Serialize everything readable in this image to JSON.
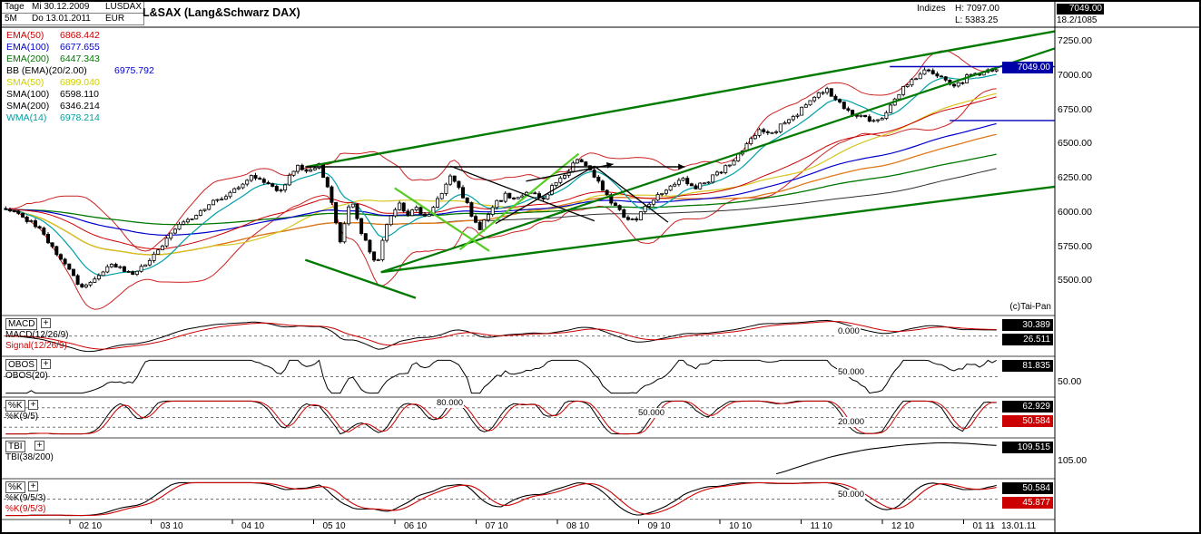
{
  "header": {
    "period": "Tage",
    "date_from": "Mi 30.12.2009",
    "symbol": "LUSDAX",
    "period2": "5M",
    "date_to": "Do 13.01.2011",
    "currency": "EUR",
    "title": "L&SAX (Lang&Schwarz DAX)",
    "group_label": "Indizes",
    "high_label": "H: 7097.00",
    "low_label": "L: 5383.25",
    "corner_price": "7049.00",
    "corner_sub": "18.2/1085"
  },
  "copyright": "(c)Tai-Pan",
  "legend": [
    {
      "label": "EMA(50)",
      "value": "6868.442",
      "lcolor": "#cc0000",
      "vcolor": "#cc0000",
      "wide": false
    },
    {
      "label": "EMA(100)",
      "value": "6677.655",
      "lcolor": "#0000cc",
      "vcolor": "#0000cc",
      "wide": false
    },
    {
      "label": "EMA(200)",
      "value": "6447.343",
      "lcolor": "#007700",
      "vcolor": "#007700",
      "wide": false
    },
    {
      "label": "BB (EMA)(20/2.00)",
      "value": "6975.792",
      "lcolor": "#000000",
      "vcolor": "#0000cc",
      "wide": true
    },
    {
      "label": "SMA(50)",
      "value": "6899.040",
      "lcolor": "#cfcf00",
      "vcolor": "#cfcf00",
      "wide": false
    },
    {
      "label": "SMA(100)",
      "value": "6598.110",
      "lcolor": "#000000",
      "vcolor": "#000000",
      "wide": false
    },
    {
      "label": "SMA(200)",
      "value": "6346.214",
      "lcolor": "#000000",
      "vcolor": "#000000",
      "wide": false
    },
    {
      "label": "WMA(14)",
      "value": "6978.214",
      "lcolor": "#00a0a0",
      "vcolor": "#00a0a0",
      "wide": false
    }
  ],
  "chart_data": {
    "type": "candlestick",
    "instrument": "L&SAX (Lang&Schwarz DAX)",
    "period_high": 7097.0,
    "period_low": 5383.25,
    "last": 7049.0,
    "price_axis": {
      "range": [
        5250,
        7350
      ],
      "last": 7049,
      "last_label": "7049.00",
      "ticks": [
        {
          "v": 7250,
          "label": "7250.00"
        },
        {
          "v": 7000,
          "label": "7000.00"
        },
        {
          "v": 6750,
          "label": "6750.00"
        },
        {
          "v": 6500,
          "label": "6500.00"
        },
        {
          "v": 6250,
          "label": "6250.00"
        },
        {
          "v": 6000,
          "label": "6000.00"
        },
        {
          "v": 5750,
          "label": "5750.00"
        },
        {
          "v": 5500,
          "label": "5500.00"
        }
      ]
    },
    "x_axis": {
      "month_labels": [
        "02 10",
        "03 10",
        "04 10",
        "05 10",
        "06 10",
        "07 10",
        "08 10",
        "09 10",
        "10 10",
        "11 10",
        "12 10",
        "01 11"
      ],
      "end_dash": "-",
      "end_label": "13.01.11"
    },
    "candles_n": 235,
    "jitter": 19,
    "close_anchors": [
      [
        0,
        6035
      ],
      [
        0.01,
        5990
      ],
      [
        0.022,
        5945
      ],
      [
        0.035,
        5860
      ],
      [
        0.05,
        5700
      ],
      [
        0.065,
        5560
      ],
      [
        0.078,
        5440
      ],
      [
        0.09,
        5530
      ],
      [
        0.105,
        5610
      ],
      [
        0.118,
        5575
      ],
      [
        0.132,
        5545
      ],
      [
        0.145,
        5655
      ],
      [
        0.16,
        5785
      ],
      [
        0.175,
        5895
      ],
      [
        0.19,
        5975
      ],
      [
        0.205,
        6050
      ],
      [
        0.218,
        6110
      ],
      [
        0.23,
        6155
      ],
      [
        0.242,
        6240
      ],
      [
        0.254,
        6268
      ],
      [
        0.265,
        6200
      ],
      [
        0.276,
        6135
      ],
      [
        0.286,
        6260
      ],
      [
        0.296,
        6335
      ],
      [
        0.306,
        6290
      ],
      [
        0.316,
        6340
      ],
      [
        0.326,
        6150
      ],
      [
        0.332,
        5960
      ],
      [
        0.338,
        5770
      ],
      [
        0.344,
        6000
      ],
      [
        0.35,
        6060
      ],
      [
        0.356,
        5900
      ],
      [
        0.362,
        5820
      ],
      [
        0.368,
        5700
      ],
      [
        0.375,
        5618
      ],
      [
        0.382,
        5840
      ],
      [
        0.39,
        5990
      ],
      [
        0.398,
        6058
      ],
      [
        0.406,
        5980
      ],
      [
        0.414,
        6045
      ],
      [
        0.422,
        5950
      ],
      [
        0.43,
        6020
      ],
      [
        0.44,
        6125
      ],
      [
        0.448,
        6280
      ],
      [
        0.456,
        6180
      ],
      [
        0.464,
        6080
      ],
      [
        0.472,
        5950
      ],
      [
        0.478,
        5878
      ],
      [
        0.486,
        5950
      ],
      [
        0.495,
        6060
      ],
      [
        0.505,
        6130
      ],
      [
        0.515,
        6080
      ],
      [
        0.528,
        6160
      ],
      [
        0.54,
        6090
      ],
      [
        0.552,
        6190
      ],
      [
        0.565,
        6290
      ],
      [
        0.578,
        6378
      ],
      [
        0.59,
        6300
      ],
      [
        0.602,
        6180
      ],
      [
        0.614,
        6050
      ],
      [
        0.625,
        5960
      ],
      [
        0.636,
        5932
      ],
      [
        0.648,
        6060
      ],
      [
        0.66,
        6140
      ],
      [
        0.672,
        6190
      ],
      [
        0.684,
        6250
      ],
      [
        0.695,
        6160
      ],
      [
        0.706,
        6220
      ],
      [
        0.72,
        6290
      ],
      [
        0.734,
        6380
      ],
      [
        0.748,
        6500
      ],
      [
        0.762,
        6600
      ],
      [
        0.775,
        6560
      ],
      [
        0.784,
        6650
      ],
      [
        0.796,
        6710
      ],
      [
        0.808,
        6770
      ],
      [
        0.82,
        6860
      ],
      [
        0.829,
        6895
      ],
      [
        0.84,
        6810
      ],
      [
        0.852,
        6720
      ],
      [
        0.865,
        6700
      ],
      [
        0.876,
        6660
      ],
      [
        0.883,
        6685
      ],
      [
        0.895,
        6800
      ],
      [
        0.906,
        6900
      ],
      [
        0.918,
        6980
      ],
      [
        0.93,
        7050
      ],
      [
        0.94,
        7010
      ],
      [
        0.95,
        6950
      ],
      [
        0.96,
        6920
      ],
      [
        0.968,
        6975
      ],
      [
        0.976,
        7022
      ],
      [
        0.984,
        6992
      ],
      [
        0.992,
        7028
      ],
      [
        1,
        7049
      ]
    ],
    "overlays": [
      {
        "key": "bbu",
        "color": "#cc2222",
        "w": 1
      },
      {
        "key": "bbl",
        "color": "#cc2222",
        "w": 1
      },
      {
        "key": "sma200",
        "color": "#303030",
        "w": 1
      },
      {
        "key": "sma100",
        "color": "#e07818",
        "w": 1.3
      },
      {
        "key": "sma50",
        "color": "#d6c61e",
        "w": 1.2
      },
      {
        "key": "ema200",
        "color": "#007700",
        "w": 1.3
      },
      {
        "key": "ema100",
        "color": "#0000cc",
        "w": 1.2
      },
      {
        "key": "ema50",
        "color": "#cc0000",
        "w": 1
      },
      {
        "key": "wma14",
        "color": "#00a0a8",
        "w": 1.2
      }
    ],
    "annotations": [
      {
        "x1": 0.288,
        "y1": 6330,
        "x2": 1.0,
        "y2": 7320,
        "color": "#007a00",
        "w": 2.4
      },
      {
        "x1": 0.359,
        "y1": 5560,
        "x2": 1.0,
        "y2": 6185,
        "color": "#007a00",
        "w": 2.4
      },
      {
        "x1": 0.359,
        "y1": 5560,
        "x2": 1.0,
        "y2": 7195,
        "color": "#007a00",
        "w": 2.2
      },
      {
        "x1": 0.287,
        "y1": 5650,
        "x2": 0.392,
        "y2": 5372,
        "color": "#007a00",
        "w": 2.4
      },
      {
        "x1": 0.372,
        "y1": 6175,
        "x2": 0.462,
        "y2": 5715,
        "color": "#55cc22",
        "w": 2.2
      },
      {
        "x1": 0.434,
        "y1": 5725,
        "x2": 0.547,
        "y2": 6425,
        "color": "#55cc22",
        "w": 2.2
      },
      {
        "x1": 0.287,
        "y1": 6330,
        "x2": 0.648,
        "y2": 6330,
        "color": "#000000",
        "w": 1.4,
        "arrow": true
      },
      {
        "x1": 0.425,
        "y1": 6335,
        "x2": 0.562,
        "y2": 5935,
        "color": "#000000",
        "w": 1.3
      },
      {
        "x1": 0.468,
        "y1": 5915,
        "x2": 0.562,
        "y2": 6335,
        "color": "#000000",
        "w": 1.3
      },
      {
        "x1": 0.497,
        "y1": 6225,
        "x2": 0.58,
        "y2": 6350,
        "color": "#000000",
        "w": 1.3,
        "arrow": true
      },
      {
        "x1": 0.562,
        "y1": 6335,
        "x2": 0.632,
        "y2": 5925,
        "color": "#000000",
        "w": 1.3
      },
      {
        "x1": 0.843,
        "y1": 7062,
        "x2": 1.0,
        "y2": 7062,
        "color": "#0000bb",
        "w": 1.4
      },
      {
        "x1": 0.9,
        "y1": 6668,
        "x2": 1.0,
        "y2": 6668,
        "color": "#0000bb",
        "w": 1.4
      }
    ],
    "panels": [
      {
        "button": "MACD",
        "series": "macd",
        "params": [
          {
            "text": "MACD(12/26/9)",
            "color": "#000000"
          },
          {
            "text": "Signal(12/26/9)",
            "color": "#cc0000"
          }
        ],
        "values": [
          {
            "text": "30.389",
            "bg": "#000000"
          },
          {
            "text": "26.511",
            "bg": "#000000"
          }
        ],
        "gridlines": [
          {
            "v": 0,
            "label": "0.000",
            "x": 920
          }
        ],
        "axis_labels": []
      },
      {
        "button": "OBOS",
        "series": "obos",
        "params": [
          {
            "text": "OBOS(20)",
            "color": "#000000"
          }
        ],
        "values": [
          {
            "text": "81.835",
            "bg": "#000000"
          }
        ],
        "gridlines": [
          {
            "v": 50,
            "label": "50.000",
            "x": 920
          }
        ],
        "axis_labels": [
          {
            "text": "50.00",
            "yoff": 22
          }
        ]
      },
      {
        "button": "%K",
        "series": "k1",
        "params": [
          {
            "text": "%K(9/5)",
            "color": "#000000"
          }
        ],
        "values": [
          {
            "text": "62.929",
            "bg": "#000000"
          },
          {
            "text": "50.584",
            "bg": "#cc0000"
          }
        ],
        "gridlines": [
          {
            "v": 80,
            "label": "80.000",
            "x": 478
          },
          {
            "v": 50,
            "label": "50.000",
            "x": 700
          },
          {
            "v": 20,
            "label": "20.000",
            "x": 920
          }
        ],
        "axis_labels": []
      },
      {
        "button": "TBI",
        "series": "tbi",
        "params": [
          {
            "text": "TBI(38/200)",
            "color": "#000000"
          }
        ],
        "values": [
          {
            "text": "109.515",
            "bg": "#000000"
          }
        ],
        "gridlines": [],
        "axis_labels": [
          {
            "text": "105.00",
            "yoff": 19
          }
        ]
      },
      {
        "button": "%K",
        "series": "k2",
        "params": [
          {
            "text": "%K(9/5/3)",
            "color": "#000000"
          },
          {
            "text": "%K(9/5/3)",
            "color": "#cc0000"
          }
        ],
        "values": [
          {
            "text": "50.584",
            "bg": "#000000"
          },
          {
            "text": "45.877",
            "bg": "#cc0000"
          }
        ],
        "gridlines": [
          {
            "v": 50,
            "label": "50.000",
            "x": 920
          }
        ],
        "axis_labels": []
      }
    ]
  }
}
